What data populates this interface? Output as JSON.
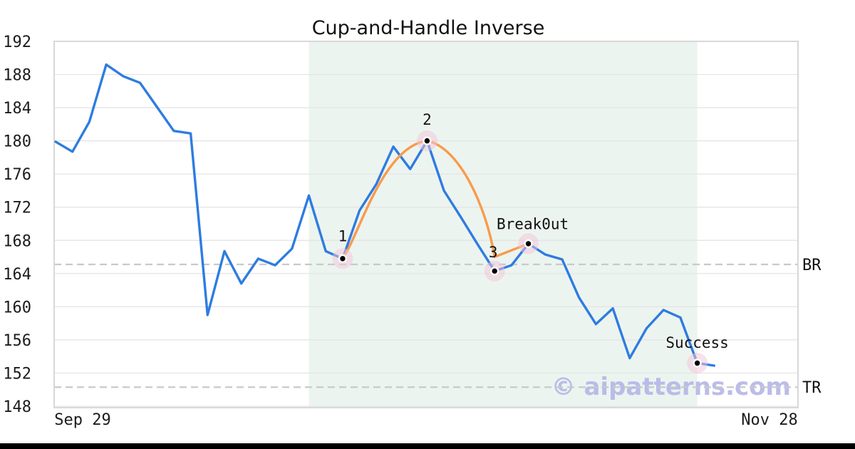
{
  "figure": {
    "title": "Cup-and-Handle Inverse",
    "watermark": "© aipatterns.com"
  },
  "axes": {
    "y_ticks": [
      192,
      188,
      184,
      180,
      176,
      172,
      168,
      164,
      160,
      156,
      152,
      148
    ],
    "x_ticks": [
      "Sep 29",
      "Nov 28"
    ]
  },
  "chart_data": {
    "type": "line",
    "title": "Cup-and-Handle Inverse",
    "xlabel": "",
    "ylabel": "",
    "ylim": [
      148,
      192
    ],
    "y_tick_step": 4,
    "x_tick_labels": [
      "Sep 29",
      "Nov 28"
    ],
    "grid": true,
    "legend_position": "none",
    "series": [
      {
        "name": "price",
        "color": "#2e7ce1",
        "values": [
          179.9,
          178.7,
          182.3,
          189.2,
          187.8,
          187.0,
          184.1,
          181.2,
          180.9,
          159.0,
          166.7,
          162.8,
          165.8,
          165.0,
          167.0,
          173.4,
          166.7,
          165.8,
          171.6,
          174.8,
          179.3,
          176.6,
          180.0,
          174.0,
          170.8,
          167.5,
          164.3,
          165.0,
          167.6,
          166.3,
          165.7,
          161.1,
          157.9,
          159.8,
          153.8,
          157.4,
          159.6,
          158.7,
          153.2,
          152.9
        ]
      }
    ],
    "pattern_overlay": {
      "name": "cup-and-handle-inverse",
      "color": "#f89b4c",
      "cup_points": [
        [
          17,
          165.8
        ],
        [
          22,
          180.0
        ],
        [
          26,
          166.0
        ]
      ],
      "handle_points": [
        [
          26,
          166.0
        ],
        [
          28,
          167.6
        ]
      ]
    },
    "markers": [
      {
        "label": "1",
        "index": 17,
        "value": 165.8
      },
      {
        "label": "2",
        "index": 22,
        "value": 180.0
      },
      {
        "label": "3",
        "index": 26,
        "value": 164.3
      },
      {
        "label": "Break0ut",
        "index": 28,
        "value": 167.6
      },
      {
        "label": "Success",
        "index": 38,
        "value": 153.2
      }
    ],
    "hlines": [
      {
        "label": "BR",
        "value": 165.1
      },
      {
        "label": "TR",
        "value": 150.3
      }
    ],
    "shaded_region": {
      "start_index": 15,
      "end_index": 38
    }
  },
  "colors": {
    "line_blue": "#2e7ce1",
    "pattern_orange": "#f89b4c",
    "shade_mint": "#ecf4f0",
    "gridline": "#e3e3e3",
    "spine": "#d8d8d8",
    "dashed_level": "#c9c9c9",
    "marker_halo": "rgba(244,195,216,0.5)",
    "marker_ring": "#ffffff",
    "marker_dot": "#000000",
    "watermark": "#b5b5e8",
    "bottom_bar": "#000000"
  }
}
